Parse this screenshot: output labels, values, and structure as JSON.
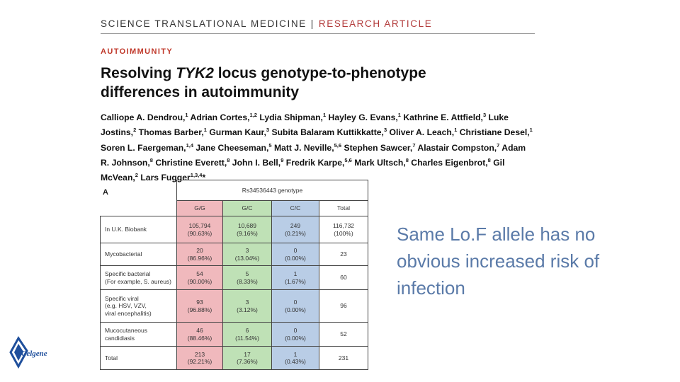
{
  "journal": {
    "name": "SCIENCE TRANSLATIONAL MEDICINE",
    "separator": "|",
    "type": "RESEARCH ARTICLE"
  },
  "section": "AUTOIMMUNITY",
  "title": {
    "prefix": "Resolving ",
    "gene": "TYK2",
    "rest": " locus genotype-to-phenotype differences in autoimmunity"
  },
  "authors": [
    {
      "name": "Calliope A. Dendrou,",
      "aff": "1"
    },
    {
      "name": "Adrian Cortes,",
      "aff": "1,2"
    },
    {
      "name": "Lydia Shipman,",
      "aff": "1"
    },
    {
      "name": "Hayley G. Evans,",
      "aff": "1"
    },
    {
      "name": "Kathrine E. Attfield,",
      "aff": "3"
    },
    {
      "name": "Luke Jostins,",
      "aff": "2"
    },
    {
      "name": "Thomas Barber,",
      "aff": "1"
    },
    {
      "name": "Gurman Kaur,",
      "aff": "3"
    },
    {
      "name": "Subita Balaram Kuttikkatte,",
      "aff": "3"
    },
    {
      "name": "Oliver A. Leach,",
      "aff": "1"
    },
    {
      "name": "Christiane Desel,",
      "aff": "1"
    },
    {
      "name": "Soren L. Faergeman,",
      "aff": "1,4"
    },
    {
      "name": "Jane Cheeseman,",
      "aff": "5"
    },
    {
      "name": "Matt J. Neville,",
      "aff": "5,6"
    },
    {
      "name": "Stephen Sawcer,",
      "aff": "7"
    },
    {
      "name": "Alastair Compston,",
      "aff": "7"
    },
    {
      "name": "Adam R. Johnson,",
      "aff": "8"
    },
    {
      "name": "Christine Everett,",
      "aff": "8"
    },
    {
      "name": "John I. Bell,",
      "aff": "9"
    },
    {
      "name": "Fredrik Karpe,",
      "aff": "5,6"
    },
    {
      "name": "Mark Ultsch,",
      "aff": "8"
    },
    {
      "name": "Charles Eigenbrot,",
      "aff": "8"
    },
    {
      "name": "Gil McVean,",
      "aff": "2"
    },
    {
      "name": "Lars Fugger",
      "aff": "1,3,4"
    }
  ],
  "author_star": "*",
  "panel_label": "A",
  "table": {
    "genotype_header": "Rs34536443 genotype",
    "columns": [
      "G/G",
      "G/C",
      "C/C",
      "Total"
    ],
    "rows": [
      {
        "label": [
          "In U.K. Biobank"
        ],
        "gg": [
          "105,794",
          "(90.63%)"
        ],
        "gc": [
          "10,689",
          "(9.16%)"
        ],
        "cc": [
          "249",
          "(0.21%)"
        ],
        "total": [
          "116,732",
          "(100%)"
        ]
      },
      {
        "label": [
          "Mycobacterial"
        ],
        "gg": [
          "20",
          "(86.96%)"
        ],
        "gc": [
          "3",
          "(13.04%)"
        ],
        "cc": [
          "0",
          "(0.00%)"
        ],
        "total": [
          "23"
        ]
      },
      {
        "label": [
          "Specific bacterial",
          "(For example, S. aureus)"
        ],
        "gg": [
          "54",
          "(90.00%)"
        ],
        "gc": [
          "5",
          "(8.33%)"
        ],
        "cc": [
          "1",
          "(1.67%)"
        ],
        "total": [
          "60"
        ]
      },
      {
        "label": [
          "Specific viral",
          "(e.g. HSV, VZV,",
          "viral encephalitis)"
        ],
        "gg": [
          "93",
          "(96.88%)"
        ],
        "gc": [
          "3",
          "(3.12%)"
        ],
        "cc": [
          "0",
          "(0.00%)"
        ],
        "total": [
          "96"
        ]
      },
      {
        "label": [
          "Mucocutaneous",
          "candidiasis"
        ],
        "gg": [
          "46",
          "(88.46%)"
        ],
        "gc": [
          "6",
          "(11.54%)"
        ],
        "cc": [
          "0",
          "(0.00%)"
        ],
        "total": [
          "52"
        ]
      },
      {
        "label": [
          "Total"
        ],
        "gg": [
          "213",
          "(92.21%)"
        ],
        "gc": [
          "17",
          "(7.36%)"
        ],
        "cc": [
          "1",
          "(0.43%)"
        ],
        "total": [
          "231"
        ]
      }
    ]
  },
  "note": "Same Lo.F allele has no obvious increased risk of infection",
  "logo": {
    "text": "Celgene",
    "icon": "celgene-diamond-logo",
    "color": "#1f4f9c"
  }
}
